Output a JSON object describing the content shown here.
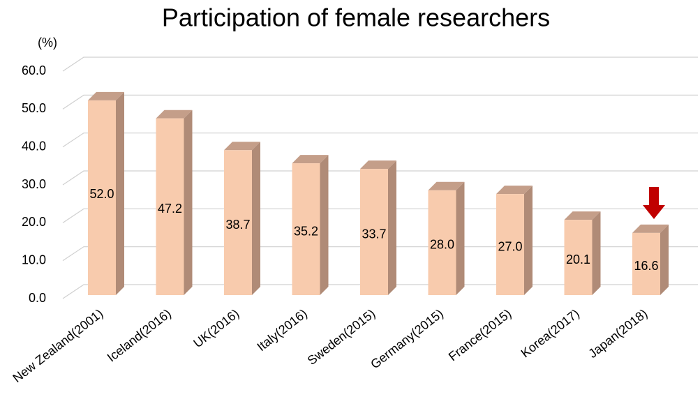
{
  "chart_data": {
    "type": "bar3d",
    "title": "Participation of female researchers",
    "y_unit_label": "(%)",
    "categories": [
      "New Zealand(2001)",
      "Iceland(2016)",
      "UK(2016)",
      "Italy(2016)",
      "Sweden(2015)",
      "Germany(2015)",
      "France(2015)",
      "Korea(2017)",
      "Japan(2018)"
    ],
    "values": [
      52.0,
      47.2,
      38.7,
      35.2,
      33.7,
      28.0,
      27.0,
      20.1,
      16.6
    ],
    "value_labels": [
      "52.0",
      "47.2",
      "38.7",
      "35.2",
      "33.7",
      "28.0",
      "27.0",
      "20.1",
      "16.6"
    ],
    "color": "#f8cbad",
    "ylim": [
      0,
      60
    ],
    "yticks": [
      {
        "value": 0,
        "label": "0.0"
      },
      {
        "value": 10,
        "label": "10.0"
      },
      {
        "value": 20,
        "label": "20.0"
      },
      {
        "value": 30,
        "label": "30.0"
      },
      {
        "value": 40,
        "label": "40.0"
      },
      {
        "value": 50,
        "label": "50.0"
      },
      {
        "value": 60,
        "label": "60.0"
      }
    ],
    "grid": true
  }
}
